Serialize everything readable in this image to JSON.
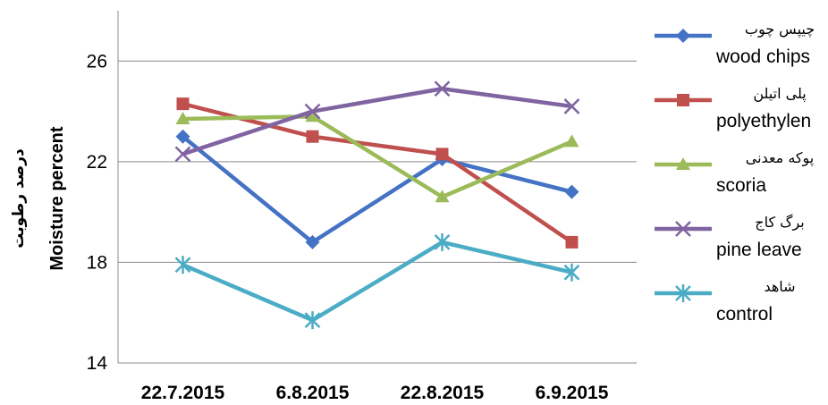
{
  "chart_data": {
    "type": "line",
    "categories": [
      "22.7.2015",
      "6.8.2015",
      "22.8.2015",
      "6.9.2015"
    ],
    "ylabel": "Moisture percent",
    "ylabel_fa": "درصد رطوبت",
    "ylim": [
      14,
      28
    ],
    "yticks": [
      14,
      18,
      22,
      26
    ],
    "grid": true,
    "legend_position": "right",
    "series": [
      {
        "name_fa": "چیپس چوب",
        "name": "wood chips",
        "values": [
          23.0,
          18.8,
          22.1,
          20.8
        ],
        "color": "#4472C4",
        "marker": "diamond"
      },
      {
        "name_fa": "پلی اتیلن",
        "name": "polyethylen",
        "values": [
          24.3,
          23.0,
          22.3,
          18.8
        ],
        "color": "#C0504D",
        "marker": "square"
      },
      {
        "name_fa": "پوکه معدنی",
        "name": "scoria",
        "values": [
          23.7,
          23.8,
          20.6,
          22.8
        ],
        "color": "#9BBB59",
        "marker": "triangle"
      },
      {
        "name_fa": "برگ کاج",
        "name": "pine leave",
        "values": [
          22.3,
          24.0,
          24.9,
          24.2
        ],
        "color": "#8064A2",
        "marker": "x"
      },
      {
        "name_fa": "شاهد",
        "name": "control",
        "values": [
          17.9,
          15.7,
          18.8,
          17.6
        ],
        "color": "#4BACC6",
        "marker": "star"
      }
    ]
  }
}
